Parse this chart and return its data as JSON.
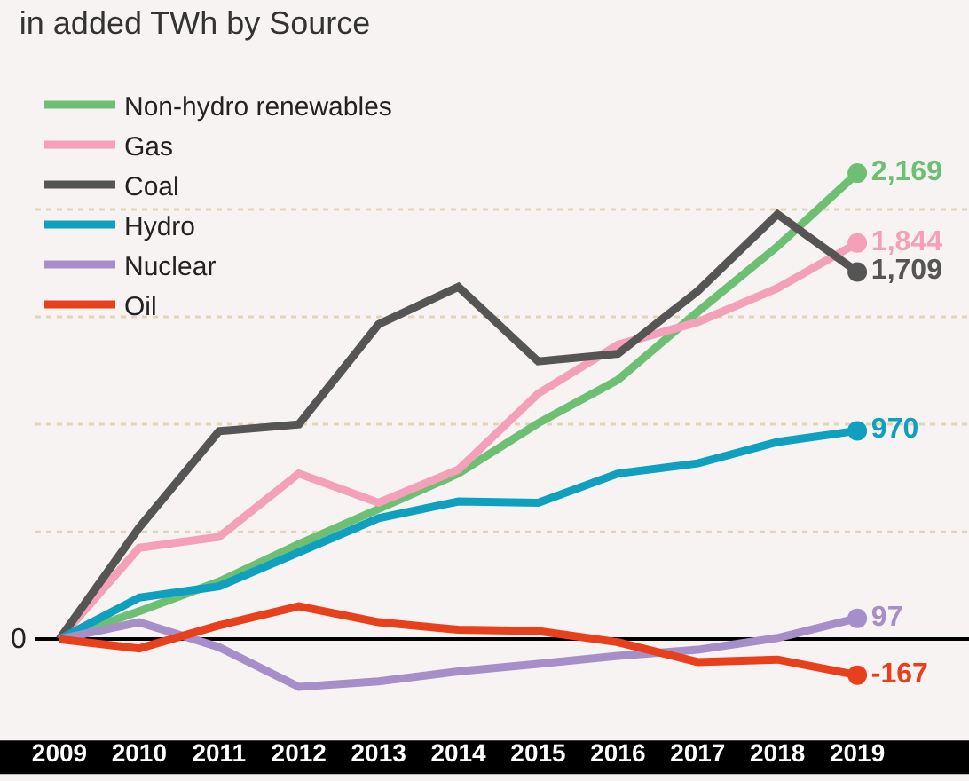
{
  "chart_data": {
    "type": "line",
    "title": "in added TWh by Source",
    "x": [
      2009,
      2010,
      2011,
      2012,
      2013,
      2014,
      2015,
      2016,
      2017,
      2018,
      2019
    ],
    "series": [
      {
        "name": "Non-hydro renewables",
        "color": "#6dbf73",
        "values": [
          0,
          130,
          268,
          442,
          606,
          771,
          1005,
          1207,
          1524,
          1828,
          2169
        ],
        "value_labels": [
          null,
          null,
          null,
          null,
          null,
          null,
          null,
          null,
          null,
          null,
          "2,169"
        ]
      },
      {
        "name": "Gas",
        "color": "#f4a0b9",
        "values": [
          0,
          425,
          476,
          771,
          635,
          789,
          1143,
          1371,
          1476,
          1634,
          1844
        ],
        "value_labels": [
          null,
          null,
          null,
          null,
          null,
          null,
          null,
          null,
          null,
          null,
          "1,844"
        ]
      },
      {
        "name": "Coal",
        "color": "#555555",
        "values": [
          0,
          520,
          968,
          1000,
          1466,
          1640,
          1293,
          1328,
          1620,
          1978,
          1709
        ],
        "value_labels": [
          null,
          null,
          null,
          null,
          null,
          null,
          null,
          null,
          null,
          null,
          "1,709"
        ]
      },
      {
        "name": "Hydro",
        "color": "#0fa0c0",
        "values": [
          0,
          194,
          246,
          404,
          563,
          641,
          635,
          771,
          818,
          918,
          970
        ],
        "value_labels": [
          null,
          null,
          null,
          null,
          null,
          null,
          null,
          null,
          null,
          null,
          "970"
        ]
      },
      {
        "name": "Nuclear",
        "color": "#a68fc8",
        "values": [
          0,
          79,
          -37,
          -222,
          -196,
          -150,
          -115,
          -78,
          -49,
          6,
          97
        ],
        "value_labels": [
          null,
          null,
          null,
          null,
          null,
          null,
          null,
          null,
          null,
          null,
          "97"
        ]
      },
      {
        "name": "Oil",
        "color": "#e8401c",
        "values": [
          0,
          -43,
          64,
          153,
          79,
          44,
          38,
          -14,
          -106,
          -95,
          -167
        ],
        "value_labels": [
          null,
          null,
          null,
          null,
          null,
          null,
          null,
          null,
          null,
          null,
          "-167"
        ]
      }
    ],
    "xlim": [
      2008.7,
      2020.4
    ],
    "xticks": [
      2009,
      2010,
      2011,
      2012,
      2013,
      2014,
      2015,
      2016,
      2017,
      2018,
      2019
    ],
    "annotations": [
      "0"
    ],
    "ref_lines": [
      {
        "axis": "y",
        "value": 500,
        "color": "#e3d5b3",
        "line_style": "dotted"
      },
      {
        "axis": "y",
        "value": 1000,
        "color": "#e3d5b3",
        "line_style": "dotted"
      },
      {
        "axis": "y",
        "value": 1500,
        "color": "#e3d5b3",
        "line_style": "dotted"
      },
      {
        "axis": "y",
        "value": 2000,
        "color": "#e3d5b3",
        "line_style": "dotted"
      }
    ],
    "legend": "top left",
    "line_style": "solid"
  }
}
